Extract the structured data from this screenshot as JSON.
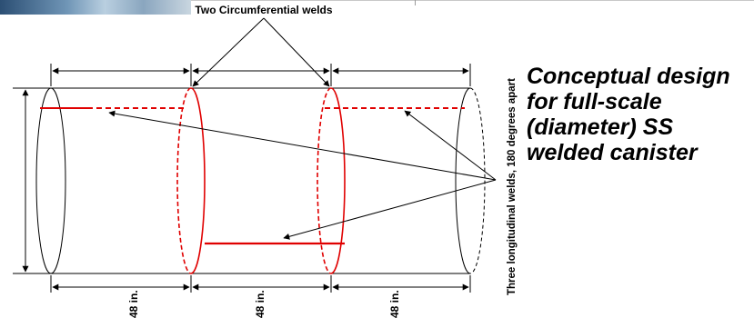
{
  "top_label": "Two Circumferential welds",
  "side_label": "Three longitudinal welds, 180 degrees apart",
  "caption_lines": [
    "Conceptual design",
    "for full-scale",
    "(diameter) SS",
    "welded canister"
  ],
  "dimension_labels": [
    "48 in.",
    "48 in.",
    "48 in."
  ],
  "colors": {
    "weld": "#e00000",
    "outline": "#000000"
  }
}
